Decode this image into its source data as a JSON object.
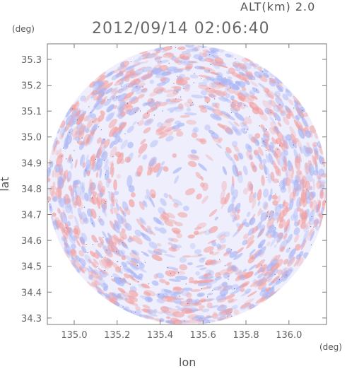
{
  "header": {
    "altitude_label": "ALT(km) 2.0",
    "timestamp": "2012/09/14 02:06:40"
  },
  "axes": {
    "y_unit": "(deg)",
    "x_unit": "(deg)",
    "x_label": "lon",
    "y_label": "lat"
  },
  "colors": {
    "positive": "#f2a0a0",
    "negative": "#a8b4f4",
    "neutral": "#eeeefc",
    "axis": "#777777"
  },
  "chart_data": {
    "type": "heatmap",
    "title": "2012/09/14 02:06:40",
    "subtitle": "ALT(km) 2.0",
    "xlabel": "lon",
    "ylabel": "lat",
    "xlim": [
      134.875,
      136.175
    ],
    "ylim": [
      34.275,
      35.36
    ],
    "x_ticks": [
      135.0,
      135.2,
      135.4,
      135.6,
      135.8,
      136.0
    ],
    "x_tick_labels": [
      "135.0",
      "135.2",
      "135.4",
      "135.6",
      "135.8",
      "136.0"
    ],
    "y_ticks": [
      34.3,
      34.4,
      34.5,
      34.6,
      34.7,
      34.8,
      34.9,
      35.0,
      35.1,
      35.2,
      35.3
    ],
    "y_tick_labels": [
      "34.3",
      "34.4",
      "34.5",
      "34.6",
      "34.7",
      "34.8",
      "34.9",
      "35.0",
      "35.1",
      "35.2",
      "35.3"
    ],
    "coverage": {
      "shape": "circle",
      "center_lon": 135.525,
      "center_lat": 34.815
    },
    "color_scale": "diverging blue-white-red"
  }
}
